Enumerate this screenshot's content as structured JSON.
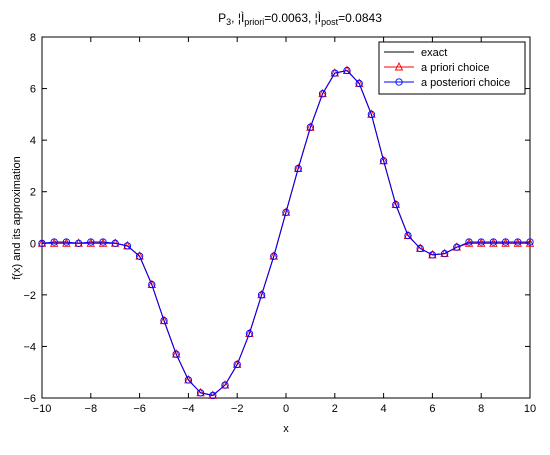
{
  "chart_data": {
    "type": "line",
    "title": {
      "pre": "P",
      "sub3": "3",
      "mid1": ", ¦Ì",
      "sub_priori": "priori",
      "val_priori": "=0.0063, ¦Ì",
      "sub_post": "post",
      "val_post": "=0.0843"
    },
    "xlabel": "x",
    "ylabel": "f(x) and its approximation",
    "xlim": [
      -10,
      10
    ],
    "ylim": [
      -6,
      8
    ],
    "xticks": [
      -10,
      -8,
      -6,
      -4,
      -2,
      0,
      2,
      4,
      6,
      8,
      10
    ],
    "yticks": [
      -6,
      -4,
      -2,
      0,
      2,
      4,
      6,
      8
    ],
    "grid": false,
    "legend_position": "top-right",
    "x": [
      -10,
      -9.5,
      -9,
      -8.5,
      -8,
      -7.5,
      -7,
      -6.5,
      -6,
      -5.5,
      -5,
      -4.5,
      -4,
      -3.5,
      -3,
      -2.5,
      -2,
      -1.5,
      -1,
      -0.5,
      0,
      0.5,
      1,
      1.5,
      2,
      2.5,
      3,
      3.5,
      4,
      4.5,
      5,
      5.5,
      6,
      6.5,
      7,
      7.5,
      8,
      8.5,
      9,
      9.5,
      10
    ],
    "series": [
      {
        "name": "exact",
        "color": "#000000",
        "marker": "none",
        "values": [
          0,
          0,
          0,
          0,
          0,
          0,
          0,
          -0.1,
          -0.5,
          -1.6,
          -3.0,
          -4.3,
          -5.3,
          -5.8,
          -5.9,
          -5.5,
          -4.7,
          -3.5,
          -2.0,
          -0.5,
          1.2,
          2.9,
          4.5,
          5.8,
          6.6,
          6.7,
          6.2,
          5.0,
          3.2,
          1.5,
          0.3,
          -0.2,
          -0.45,
          -0.4,
          -0.15,
          0,
          0,
          0,
          0,
          0,
          0
        ]
      },
      {
        "name": "a priori choice",
        "color": "#ff0000",
        "marker": "triangle",
        "values": [
          0,
          0,
          0,
          0,
          0,
          0,
          0,
          -0.1,
          -0.5,
          -1.6,
          -3.0,
          -4.3,
          -5.3,
          -5.8,
          -5.9,
          -5.5,
          -4.7,
          -3.5,
          -2.0,
          -0.5,
          1.2,
          2.9,
          4.5,
          5.8,
          6.6,
          6.7,
          6.2,
          5.0,
          3.2,
          1.5,
          0.3,
          -0.2,
          -0.45,
          -0.4,
          -0.15,
          0,
          0,
          0,
          0,
          0,
          0
        ]
      },
      {
        "name": "a posteriori choice",
        "color": "#0000ff",
        "marker": "circle",
        "values": [
          0,
          0.05,
          0.05,
          0,
          0.05,
          0.05,
          0,
          -0.1,
          -0.5,
          -1.6,
          -3.0,
          -4.3,
          -5.3,
          -5.8,
          -5.9,
          -5.5,
          -4.7,
          -3.5,
          -2.0,
          -0.5,
          1.2,
          2.9,
          4.5,
          5.8,
          6.6,
          6.7,
          6.2,
          5.0,
          3.2,
          1.5,
          0.3,
          -0.2,
          -0.45,
          -0.4,
          -0.15,
          0.05,
          0.05,
          0.05,
          0.05,
          0.05,
          0.05
        ]
      }
    ]
  }
}
